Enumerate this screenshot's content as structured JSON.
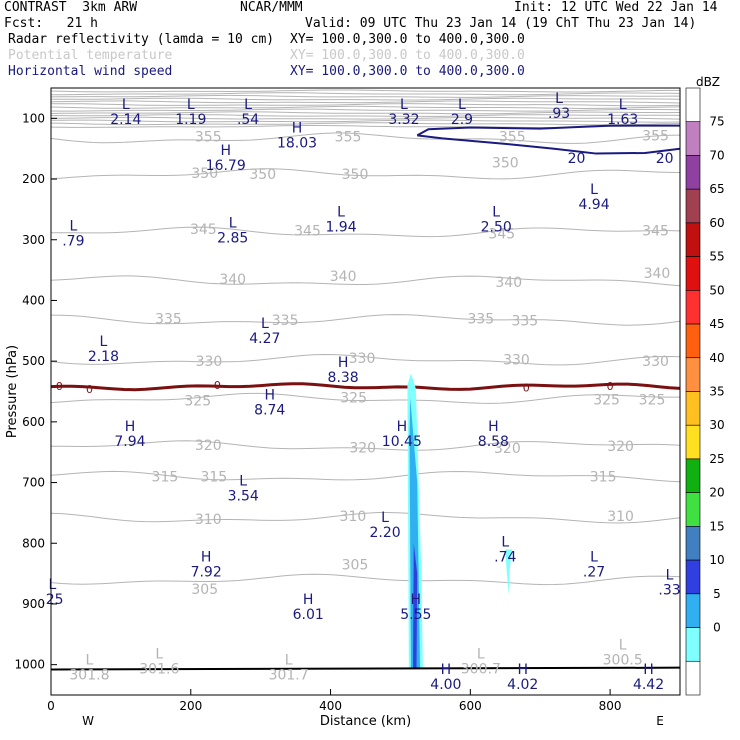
{
  "header": {
    "line1_left": "CONTRAST  3km ARW",
    "line1_center": "NCAR/MMM",
    "line1_right": "Init: 12 UTC Wed 22 Jan 14",
    "line2_left": "Fcst:   21 h",
    "line2_right": "Valid: 09 UTC Thu 23 Jan 14 (19 ChT Thu 23 Jan 14)",
    "field1_name": "Radar reflectivity (lamda = 10 cm)",
    "field1_xy": "XY= 100.0,300.0 to 400.0,300.0",
    "field2_name": "Potential temperature",
    "field2_xy": "XY= 100.0,300.0 to 400.0,300.0",
    "field3_name": "Horizontal wind speed",
    "field3_xy": "XY= 100.0,300.0 to 400.0,300.0"
  },
  "colors": {
    "theta": "#b4b4b4",
    "wind": "#1a1a80",
    "zero_line": "#7a1010",
    "header_gray": "#c8c8c8"
  },
  "chart_data": {
    "type": "cross-section",
    "title": "Radar reflectivity, Potential temperature, Horizontal wind speed",
    "xlabel": "Distance (km)",
    "ylabel": "Pressure (hPa)",
    "xlim": [
      0,
      900
    ],
    "ylim": [
      1050,
      50
    ],
    "x_ticks": [
      0,
      200,
      400,
      600,
      800
    ],
    "y_ticks": [
      100,
      200,
      300,
      400,
      500,
      600,
      700,
      800,
      900,
      1000
    ],
    "x_end_labels": {
      "left": "W",
      "right": "E"
    },
    "colorbar": {
      "unit": "dBZ",
      "levels": [
        "75",
        "70",
        "65",
        "60",
        "55",
        "50",
        "45",
        "40",
        "35",
        "30",
        "25",
        "20",
        "15",
        "10",
        "5",
        "0"
      ],
      "colors": [
        "#ffffff",
        "#c080c0",
        "#9040a0",
        "#a04050",
        "#c01010",
        "#e01010",
        "#ff3030",
        "#ff6010",
        "#ff9040",
        "#ffc020",
        "#ffe020",
        "#10b010",
        "#40e040",
        "#4080c0",
        "#3040e0",
        "#30b0f0",
        "#80ffff",
        "#ffffff"
      ]
    },
    "theta_labels": [
      {
        "text": "355",
        "x": 225,
        "p": 130
      },
      {
        "text": "355",
        "x": 425,
        "p": 130
      },
      {
        "text": "355",
        "x": 660,
        "p": 130
      },
      {
        "text": "355",
        "x": 865,
        "p": 128
      },
      {
        "text": "350",
        "x": 220,
        "p": 190
      },
      {
        "text": "350",
        "x": 303,
        "p": 192
      },
      {
        "text": "350",
        "x": 435,
        "p": 192
      },
      {
        "text": "350",
        "x": 650,
        "p": 173
      },
      {
        "text": "345",
        "x": 218,
        "p": 282
      },
      {
        "text": "345",
        "x": 367,
        "p": 285
      },
      {
        "text": "345",
        "x": 645,
        "p": 290
      },
      {
        "text": "345",
        "x": 865,
        "p": 285
      },
      {
        "text": "340",
        "x": 260,
        "p": 365
      },
      {
        "text": "340",
        "x": 418,
        "p": 360
      },
      {
        "text": "340",
        "x": 655,
        "p": 370
      },
      {
        "text": "340",
        "x": 867,
        "p": 355
      },
      {
        "text": "335",
        "x": 168,
        "p": 430
      },
      {
        "text": "335",
        "x": 335,
        "p": 432
      },
      {
        "text": "335",
        "x": 615,
        "p": 430
      },
      {
        "text": "335",
        "x": 678,
        "p": 433
      },
      {
        "text": "330",
        "x": 226,
        "p": 500
      },
      {
        "text": "330",
        "x": 445,
        "p": 495
      },
      {
        "text": "330",
        "x": 666,
        "p": 497
      },
      {
        "text": "330",
        "x": 865,
        "p": 500
      },
      {
        "text": "325",
        "x": 210,
        "p": 565
      },
      {
        "text": "325",
        "x": 433,
        "p": 560
      },
      {
        "text": "325",
        "x": 795,
        "p": 563
      },
      {
        "text": "325",
        "x": 860,
        "p": 563
      },
      {
        "text": "320",
        "x": 225,
        "p": 638
      },
      {
        "text": "320",
        "x": 446,
        "p": 642
      },
      {
        "text": "320",
        "x": 653,
        "p": 643
      },
      {
        "text": "320",
        "x": 815,
        "p": 640
      },
      {
        "text": "315",
        "x": 163,
        "p": 690
      },
      {
        "text": "315",
        "x": 233,
        "p": 690
      },
      {
        "text": "315",
        "x": 790,
        "p": 690
      },
      {
        "text": "310",
        "x": 225,
        "p": 760
      },
      {
        "text": "310",
        "x": 432,
        "p": 755
      },
      {
        "text": "310",
        "x": 815,
        "p": 755
      },
      {
        "text": "305",
        "x": 220,
        "p": 875
      },
      {
        "text": "305",
        "x": 435,
        "p": 835
      }
    ],
    "wind_labels": [
      {
        "text": "20",
        "x": 752,
        "p": 165
      },
      {
        "text": "20",
        "x": 878,
        "p": 165
      }
    ],
    "zero_labels": [
      {
        "text": "0",
        "x": 12,
        "p": 541
      },
      {
        "text": "0",
        "x": 55,
        "p": 546
      },
      {
        "text": "0",
        "x": 238,
        "p": 539
      },
      {
        "text": "0",
        "x": 680,
        "p": 543
      },
      {
        "text": "0",
        "x": 800,
        "p": 541
      }
    ],
    "extrema": [
      {
        "type": "L",
        "value": "2.14",
        "x": 107,
        "p": 85
      },
      {
        "type": "L",
        "value": "1.19",
        "x": 200,
        "p": 85
      },
      {
        "type": "L",
        "value": ".54",
        "x": 282,
        "p": 85
      },
      {
        "type": "L",
        "value": "3.32",
        "x": 505,
        "p": 85
      },
      {
        "type": "L",
        "value": "2.9",
        "x": 588,
        "p": 85
      },
      {
        "type": "L",
        "value": ".93",
        "x": 727,
        "p": 75
      },
      {
        "type": "L",
        "value": "1.63",
        "x": 818,
        "p": 85
      },
      {
        "type": "H",
        "value": "18.03",
        "x": 352,
        "p": 123
      },
      {
        "type": "H",
        "value": "16.79",
        "x": 250,
        "p": 160
      },
      {
        "type": "L",
        "value": "4.94",
        "x": 777,
        "p": 225
      },
      {
        "type": "L",
        "value": ".79",
        "x": 32,
        "p": 285
      },
      {
        "type": "L",
        "value": "2.85",
        "x": 260,
        "p": 280
      },
      {
        "type": "L",
        "value": "1.94",
        "x": 415,
        "p": 262
      },
      {
        "type": "L",
        "value": "2.50",
        "x": 637,
        "p": 262
      },
      {
        "type": "L",
        "value": "4.27",
        "x": 306,
        "p": 445
      },
      {
        "type": "L",
        "value": "2.18",
        "x": 75,
        "p": 475
      },
      {
        "type": "H",
        "value": "8.38",
        "x": 418,
        "p": 510
      },
      {
        "type": "H",
        "value": "8.74",
        "x": 313,
        "p": 563
      },
      {
        "type": "H",
        "value": "7.94",
        "x": 113,
        "p": 615
      },
      {
        "type": "H",
        "value": "10.45",
        "x": 502,
        "p": 615
      },
      {
        "type": "H",
        "value": "8.58",
        "x": 633,
        "p": 615
      },
      {
        "type": "L",
        "value": "3.54",
        "x": 275,
        "p": 705
      },
      {
        "type": "L",
        "value": "2.20",
        "x": 478,
        "p": 765
      },
      {
        "type": "L",
        "value": ".74",
        "x": 650,
        "p": 805
      },
      {
        "type": "H",
        "value": "7.92",
        "x": 222,
        "p": 830
      },
      {
        "type": "L",
        "value": ".27",
        "x": 777,
        "p": 830
      },
      {
        "type": "L",
        "value": ".25",
        "x": 2,
        "p": 875
      },
      {
        "type": "L",
        "value": ".33",
        "x": 885,
        "p": 860
      },
      {
        "type": "H",
        "value": "6.01",
        "x": 368,
        "p": 900
      },
      {
        "type": "H",
        "value": "5.55",
        "x": 522,
        "p": 900
      },
      {
        "type": "L",
        "value": "301.8",
        "x": 55,
        "p": 1000
      },
      {
        "type": "L",
        "value": "301.6",
        "x": 155,
        "p": 990
      },
      {
        "type": "L",
        "value": "301.7",
        "x": 340,
        "p": 1000
      },
      {
        "type": "L",
        "value": "300.7",
        "x": 615,
        "p": 990
      },
      {
        "type": "L",
        "value": "300.5",
        "x": 818,
        "p": 975
      },
      {
        "type": "H",
        "value": "4.00",
        "x": 565,
        "p": 1015
      },
      {
        "type": "H",
        "value": "4.02",
        "x": 675,
        "p": 1015
      },
      {
        "type": "H",
        "value": "4.42",
        "x": 855,
        "p": 1015
      }
    ]
  }
}
